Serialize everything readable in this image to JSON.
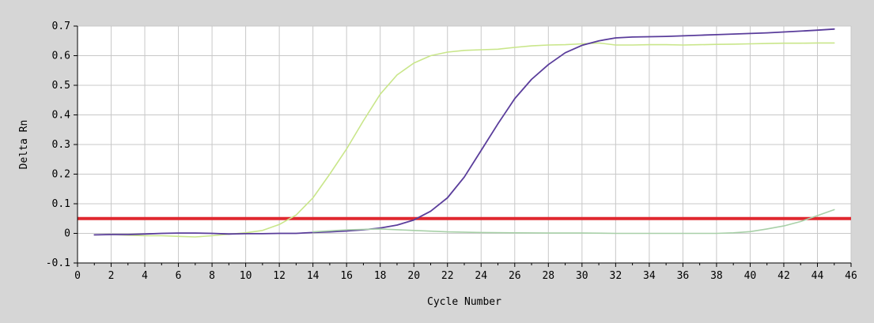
{
  "chart_data": {
    "type": "line",
    "title": "",
    "xlabel": "Cycle Number",
    "ylabel": "Delta Rn",
    "xlim": [
      0,
      46
    ],
    "ylim": [
      -0.1,
      0.7
    ],
    "x_ticks": [
      "0",
      "2",
      "4",
      "6",
      "8",
      "10",
      "12",
      "14",
      "16",
      "18",
      "20",
      "22",
      "24",
      "26",
      "28",
      "30",
      "32",
      "34",
      "36",
      "38",
      "40",
      "42",
      "44",
      "46"
    ],
    "y_ticks": [
      "-0.1",
      "0",
      "0.1",
      "0.2",
      "0.3",
      "0.4",
      "0.5",
      "0.6",
      "0.7"
    ],
    "grid": true,
    "threshold": {
      "y": 0.05,
      "color": "#e0282f"
    },
    "series": [
      {
        "color": "#c9e68a",
        "x": [
          1,
          2,
          3,
          4,
          5,
          6,
          7,
          8,
          9,
          10,
          11,
          12,
          13,
          14,
          15,
          16,
          17,
          18,
          19,
          20,
          21,
          22,
          23,
          24,
          25,
          26,
          27,
          28,
          29,
          30,
          31,
          32,
          33,
          34,
          35,
          36,
          37,
          38,
          39,
          40,
          41,
          42,
          43,
          44,
          45
        ],
        "y": [
          -0.005,
          -0.004,
          -0.006,
          -0.008,
          -0.008,
          -0.01,
          -0.012,
          -0.008,
          -0.003,
          0.002,
          0.01,
          0.03,
          0.062,
          0.12,
          0.2,
          0.285,
          0.38,
          0.47,
          0.535,
          0.575,
          0.6,
          0.612,
          0.618,
          0.62,
          0.622,
          0.628,
          0.633,
          0.636,
          0.637,
          0.64,
          0.643,
          0.636,
          0.636,
          0.637,
          0.637,
          0.636,
          0.637,
          0.638,
          0.639,
          0.64,
          0.641,
          0.642,
          0.642,
          0.643,
          0.643
        ]
      },
      {
        "color": "#5a3d9b",
        "x": [
          1,
          2,
          3,
          4,
          5,
          6,
          7,
          8,
          9,
          10,
          11,
          12,
          13,
          14,
          15,
          16,
          17,
          18,
          19,
          20,
          21,
          22,
          23,
          24,
          25,
          26,
          27,
          28,
          29,
          30,
          31,
          32,
          33,
          34,
          35,
          36,
          37,
          38,
          39,
          40,
          41,
          42,
          43,
          44,
          45
        ],
        "y": [
          -0.005,
          -0.004,
          -0.004,
          -0.002,
          0.0,
          0.001,
          0.001,
          0.0,
          -0.002,
          -0.001,
          -0.001,
          0.0,
          0.0,
          0.003,
          0.005,
          0.008,
          0.012,
          0.018,
          0.028,
          0.045,
          0.075,
          0.12,
          0.19,
          0.28,
          0.37,
          0.455,
          0.52,
          0.57,
          0.61,
          0.635,
          0.65,
          0.66,
          0.663,
          0.664,
          0.665,
          0.667,
          0.669,
          0.671,
          0.673,
          0.675,
          0.677,
          0.68,
          0.683,
          0.686,
          0.69
        ]
      },
      {
        "color": "#a8d0a8",
        "x": [
          14,
          16,
          18,
          20,
          22,
          24,
          26,
          28,
          30,
          32,
          34,
          36,
          38,
          39,
          40,
          41,
          42,
          43,
          44,
          45
        ],
        "y": [
          0.005,
          0.012,
          0.015,
          0.01,
          0.005,
          0.003,
          0.002,
          0.001,
          0.001,
          0.0,
          0.0,
          0.0,
          0.0,
          0.002,
          0.006,
          0.015,
          0.025,
          0.04,
          0.06,
          0.08
        ]
      }
    ]
  }
}
